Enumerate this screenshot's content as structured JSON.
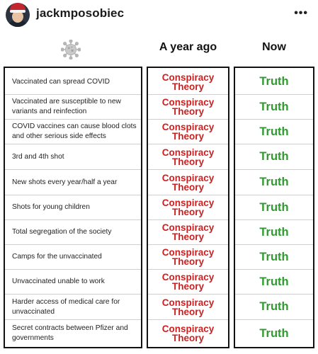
{
  "post": {
    "username": "jackmposobiec",
    "more_label": "•••"
  },
  "table": {
    "icon": "virus-icon",
    "col_then": "A year ago",
    "col_now": "Now",
    "then_label": "Conspiracy Theory",
    "rows": [
      {
        "claim": "Vaccinated can spread COVID",
        "then_1": "Conspiracy",
        "then_2": "Theory",
        "now": "Truth"
      },
      {
        "claim": "Vaccinated are susceptible to new variants and reinfection",
        "then_1": "Conspiracy",
        "then_2": "Theory",
        "now": "Truth"
      },
      {
        "claim": "COVID vaccines can cause blood clots and other serious side effects",
        "then_1": "Conspiracy",
        "then_2": "Theory",
        "now": "Truth"
      },
      {
        "claim": "3rd and 4th shot",
        "then_1": "Conspiracy",
        "then_2": "Theory",
        "now": "Truth"
      },
      {
        "claim": "New shots every year/half a year",
        "then_1": "Conspiracy",
        "then_2": "Theory",
        "now": "Truth"
      },
      {
        "claim": "Shots for young children",
        "then_1": "Conspiracy",
        "then_2": "Theory",
        "now": "Truth"
      },
      {
        "claim": "Total segregation of the society",
        "then_1": "Conspiracy",
        "then_2": "Theory",
        "now": "Truth"
      },
      {
        "claim": "Camps for the unvaccinated",
        "then_1": "Conspiracy",
        "then_2": "Theory",
        "now": "Truth"
      },
      {
        "claim": "Unvaccinated unable to work",
        "then_1": "Conspiracy",
        "then_2": "Theory",
        "now": "Truth"
      },
      {
        "claim": "Harder access of medical care for unvaccinated",
        "then_1": "Conspiracy",
        "then_2": "Theory",
        "now": "Truth"
      },
      {
        "claim": "Secret contracts between Pfizer and governments",
        "then_1": "Conspiracy",
        "then_2": "Theory",
        "now": "Truth"
      }
    ]
  },
  "colors": {
    "then": "#cc1f1f",
    "now": "#2f9a2f"
  }
}
